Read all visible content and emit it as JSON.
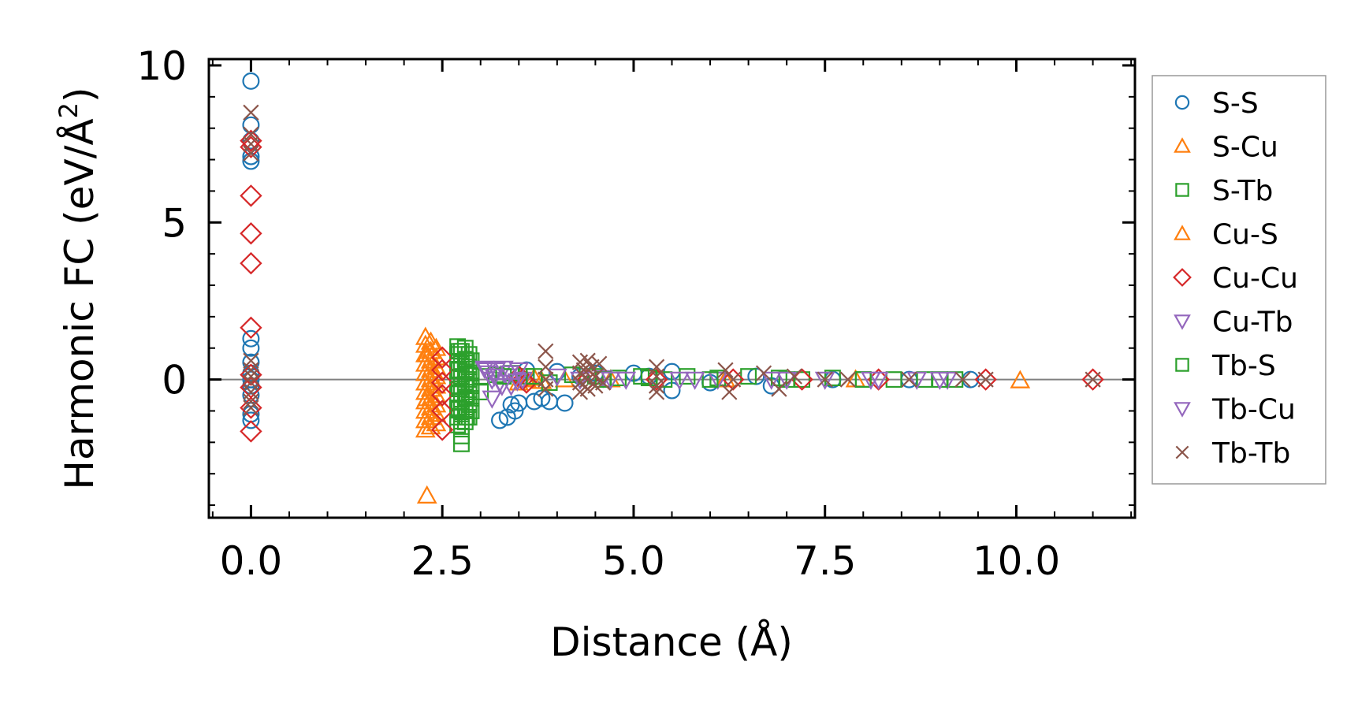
{
  "chart_data": {
    "type": "scatter",
    "xlabel": "Distance (Å)",
    "ylabel_main": "Harmonic FC (eV/Å",
    "ylabel_sup": "2",
    "ylabel_close": ")",
    "xlim": [
      -0.55,
      11.55
    ],
    "ylim": [
      -4.4,
      10.2
    ],
    "xticks": [
      0,
      2.5,
      5,
      7.5,
      10
    ],
    "xtick_labels": [
      "0.0",
      "2.5",
      "5.0",
      "7.5",
      "10.0"
    ],
    "yticks": [
      0,
      5,
      10
    ],
    "ytick_labels": [
      "0",
      "5",
      "10"
    ],
    "xminor_step": 0.5,
    "yminor_step": 1,
    "zero_line_color": "#808080",
    "legend_position": "outside right",
    "series": [
      {
        "name": "S-S",
        "marker": "circle",
        "color": "#1f77b4",
        "points": [
          [
            0,
            9.5
          ],
          [
            0,
            8.1
          ],
          [
            0,
            7.6
          ],
          [
            0,
            7.1
          ],
          [
            0,
            6.95
          ],
          [
            0,
            1.3
          ],
          [
            0,
            1.0
          ],
          [
            0,
            0.55
          ],
          [
            0,
            0.2
          ],
          [
            0,
            0.0
          ],
          [
            0,
            -0.2
          ],
          [
            0,
            -0.5
          ],
          [
            0,
            -1.1
          ],
          [
            0,
            -1.3
          ],
          [
            3.25,
            -1.3
          ],
          [
            3.35,
            -1.2
          ],
          [
            3.4,
            -0.8
          ],
          [
            3.45,
            -1.0
          ],
          [
            3.5,
            -0.75
          ],
          [
            3.6,
            0.3
          ],
          [
            3.7,
            -0.7
          ],
          [
            3.8,
            -0.6
          ],
          [
            3.9,
            -0.7
          ],
          [
            4.0,
            0.25
          ],
          [
            4.1,
            -0.75
          ],
          [
            4.3,
            0.1
          ],
          [
            4.5,
            0.2
          ],
          [
            5.0,
            0.2
          ],
          [
            5.2,
            0.1
          ],
          [
            5.5,
            -0.35
          ],
          [
            5.5,
            0.25
          ],
          [
            6.0,
            -0.1
          ],
          [
            6.6,
            0.1
          ],
          [
            6.8,
            -0.2
          ],
          [
            7.6,
            0.0
          ],
          [
            8.6,
            0.0
          ],
          [
            9.4,
            0.0
          ]
        ]
      },
      {
        "name": "S-Cu",
        "marker": "triangle-up",
        "color": "#ff7f0e",
        "points": [
          [
            2.28,
            1.35
          ],
          [
            2.28,
            1.1
          ],
          [
            2.28,
            0.8
          ],
          [
            2.28,
            0.5
          ],
          [
            2.28,
            0.2
          ],
          [
            2.28,
            -0.1
          ],
          [
            2.28,
            -0.4
          ],
          [
            2.28,
            -0.7
          ],
          [
            2.28,
            -1.0
          ],
          [
            2.28,
            -1.3
          ],
          [
            2.28,
            -1.6
          ],
          [
            2.35,
            1.2
          ],
          [
            2.35,
            0.9
          ],
          [
            2.35,
            0.6
          ],
          [
            2.35,
            0.3
          ],
          [
            2.35,
            0.0
          ],
          [
            2.35,
            -0.3
          ],
          [
            2.35,
            -0.6
          ],
          [
            2.35,
            -0.9
          ],
          [
            2.35,
            -1.2
          ],
          [
            2.35,
            -1.5
          ],
          [
            2.42,
            1.0
          ],
          [
            2.42,
            0.7
          ],
          [
            2.42,
            0.4
          ],
          [
            2.42,
            0.1
          ],
          [
            2.42,
            -0.2
          ],
          [
            2.42,
            -0.5
          ],
          [
            2.42,
            -0.8
          ],
          [
            2.42,
            -1.1
          ],
          [
            2.42,
            -1.4
          ],
          [
            2.3,
            -3.7
          ],
          [
            3.5,
            -0.1
          ],
          [
            3.7,
            0.05
          ],
          [
            3.8,
            -0.05
          ],
          [
            4.1,
            0.0
          ],
          [
            4.7,
            0.0
          ],
          [
            6.2,
            0.0
          ],
          [
            7.9,
            0.0
          ],
          [
            10.05,
            -0.03
          ]
        ]
      },
      {
        "name": "S-Tb",
        "marker": "square",
        "color": "#2ca02c",
        "points": [
          [
            2.7,
            1.05
          ],
          [
            2.7,
            0.8
          ],
          [
            2.7,
            0.55
          ],
          [
            2.7,
            0.3
          ],
          [
            2.7,
            0.05
          ],
          [
            2.7,
            -0.2
          ],
          [
            2.7,
            -0.45
          ],
          [
            2.7,
            -0.7
          ],
          [
            2.7,
            -0.95
          ],
          [
            2.7,
            -1.2
          ],
          [
            2.7,
            -1.45
          ],
          [
            2.75,
            0.9
          ],
          [
            2.75,
            0.5
          ],
          [
            2.75,
            0.1
          ],
          [
            2.75,
            -0.3
          ],
          [
            2.75,
            -0.7
          ],
          [
            2.75,
            -1.1
          ],
          [
            2.75,
            -1.5
          ],
          [
            2.8,
            1.0
          ],
          [
            2.8,
            0.65
          ],
          [
            2.8,
            0.25
          ],
          [
            2.8,
            -0.15
          ],
          [
            2.8,
            -0.55
          ],
          [
            2.8,
            -0.95
          ],
          [
            2.8,
            -1.35
          ],
          [
            2.85,
            0.8
          ],
          [
            2.85,
            0.4
          ],
          [
            2.85,
            0.0
          ],
          [
            2.85,
            -0.4
          ],
          [
            2.85,
            -0.8
          ],
          [
            2.85,
            -1.2
          ],
          [
            2.88,
            0.6
          ],
          [
            2.88,
            0.2
          ],
          [
            2.88,
            -0.2
          ],
          [
            2.88,
            -0.6
          ],
          [
            2.88,
            -1.0
          ],
          [
            2.75,
            -1.8
          ],
          [
            2.75,
            -2.05
          ],
          [
            3.0,
            -0.4
          ],
          [
            3.0,
            0.1
          ],
          [
            3.2,
            0.15
          ],
          [
            3.4,
            0.2
          ],
          [
            3.6,
            0.1
          ],
          [
            3.9,
            -0.1
          ],
          [
            4.2,
            0.15
          ],
          [
            4.5,
            0.1
          ],
          [
            4.8,
            0.05
          ],
          [
            5.1,
            0.1
          ],
          [
            5.4,
            0.0
          ],
          [
            5.7,
            0.1
          ],
          [
            6.1,
            0.05
          ],
          [
            6.5,
            0.1
          ],
          [
            6.9,
            0.05
          ],
          [
            7.2,
            0.0
          ],
          [
            7.6,
            0.05
          ],
          [
            8.0,
            0.0
          ],
          [
            8.4,
            0.0
          ],
          [
            8.8,
            0.0
          ],
          [
            9.2,
            0.0
          ]
        ]
      },
      {
        "name": "Cu-S",
        "marker": "triangle-up",
        "color": "#ff7f0e",
        "points": [
          [
            2.3,
            0.8
          ],
          [
            2.3,
            -0.6
          ],
          [
            2.4,
            0.2
          ],
          [
            3.6,
            0.0
          ]
        ]
      },
      {
        "name": "Cu-Cu",
        "marker": "diamond",
        "color": "#d62728",
        "points": [
          [
            0,
            7.6
          ],
          [
            0,
            7.4
          ],
          [
            0,
            5.85
          ],
          [
            0,
            4.65
          ],
          [
            0,
            3.7
          ],
          [
            0,
            1.65
          ],
          [
            0,
            0.15
          ],
          [
            0,
            -0.25
          ],
          [
            0,
            -0.9
          ],
          [
            0,
            -1.65
          ],
          [
            2.5,
            0.7
          ],
          [
            2.5,
            0.3
          ],
          [
            2.5,
            -0.1
          ],
          [
            2.5,
            -0.5
          ],
          [
            2.5,
            -1.0
          ],
          [
            2.5,
            -1.6
          ],
          [
            3.5,
            0.1
          ],
          [
            3.55,
            0.0
          ],
          [
            3.6,
            -0.1
          ],
          [
            4.4,
            0.0
          ],
          [
            5.3,
            0.0
          ],
          [
            6.3,
            0.0
          ],
          [
            7.2,
            0.0
          ],
          [
            8.2,
            0.0
          ],
          [
            9.6,
            0.0
          ],
          [
            11.0,
            0.0
          ]
        ]
      },
      {
        "name": "Cu-Tb",
        "marker": "triangle-down",
        "color": "#9467bd",
        "points": [
          [
            3.05,
            0.35
          ],
          [
            3.1,
            0.2
          ],
          [
            3.15,
            0.0
          ],
          [
            3.15,
            -0.6
          ],
          [
            3.2,
            0.3
          ],
          [
            3.25,
            -0.1
          ],
          [
            3.3,
            0.35
          ],
          [
            3.35,
            0.1
          ],
          [
            3.4,
            -0.2
          ],
          [
            3.5,
            0.3
          ],
          [
            3.55,
            0.0
          ],
          [
            4.0,
            0.1
          ],
          [
            4.3,
            0.0
          ],
          [
            4.6,
            0.05
          ],
          [
            4.9,
            0.0
          ],
          [
            5.6,
            0.0
          ],
          [
            6.1,
            0.0
          ],
          [
            6.8,
            0.0
          ],
          [
            7.5,
            0.0
          ],
          [
            8.2,
            0.0
          ],
          [
            8.7,
            0.0
          ],
          [
            9.1,
            0.0
          ]
        ]
      },
      {
        "name": "Tb-S",
        "marker": "square",
        "color": "#2ca02c",
        "points": [
          [
            2.72,
            0.9
          ],
          [
            2.72,
            0.3
          ],
          [
            2.72,
            -0.3
          ],
          [
            2.72,
            -0.9
          ],
          [
            2.82,
            0.6
          ],
          [
            2.82,
            0.0
          ],
          [
            2.82,
            -0.6
          ],
          [
            2.82,
            -1.2
          ],
          [
            3.3,
            0.1
          ],
          [
            3.7,
            0.1
          ],
          [
            4.6,
            0.0
          ],
          [
            5.2,
            0.05
          ],
          [
            6.0,
            0.0
          ],
          [
            7.0,
            0.0
          ],
          [
            8.0,
            0.0
          ],
          [
            9.0,
            0.0
          ]
        ]
      },
      {
        "name": "Tb-Cu",
        "marker": "triangle-down",
        "color": "#9467bd",
        "points": [
          [
            3.08,
            0.3
          ],
          [
            3.18,
            0.1
          ],
          [
            3.28,
            -0.2
          ],
          [
            3.38,
            0.2
          ],
          [
            3.48,
            -0.05
          ],
          [
            4.7,
            0.0
          ],
          [
            5.8,
            0.0
          ],
          [
            7.0,
            0.0
          ],
          [
            8.1,
            0.0
          ],
          [
            9.0,
            0.0
          ]
        ]
      },
      {
        "name": "Tb-Tb",
        "marker": "x",
        "color": "#8c564b",
        "points": [
          [
            0,
            8.5
          ],
          [
            0,
            7.8
          ],
          [
            0,
            7.5
          ],
          [
            0,
            7.2
          ],
          [
            0,
            0.6
          ],
          [
            0,
            0.3
          ],
          [
            0,
            0.1
          ],
          [
            0,
            -0.1
          ],
          [
            0,
            -0.4
          ],
          [
            0,
            -0.7
          ],
          [
            0,
            -0.9
          ],
          [
            3.85,
            0.9
          ],
          [
            3.85,
            0.4
          ],
          [
            3.85,
            0.0
          ],
          [
            3.85,
            -0.3
          ],
          [
            4.3,
            0.55
          ],
          [
            4.3,
            0.2
          ],
          [
            4.3,
            -0.1
          ],
          [
            4.3,
            -0.4
          ],
          [
            4.35,
            0.3
          ],
          [
            4.4,
            0.6
          ],
          [
            4.4,
            0.0
          ],
          [
            4.4,
            -0.3
          ],
          [
            4.45,
            0.4
          ],
          [
            4.5,
            0.1
          ],
          [
            4.5,
            -0.2
          ],
          [
            4.55,
            0.5
          ],
          [
            4.6,
            -0.1
          ],
          [
            5.3,
            0.4
          ],
          [
            5.3,
            0.1
          ],
          [
            5.3,
            -0.2
          ],
          [
            5.3,
            -0.4
          ],
          [
            6.2,
            0.3
          ],
          [
            6.25,
            -0.4
          ],
          [
            6.3,
            0.0
          ],
          [
            6.7,
            0.2
          ],
          [
            6.9,
            -0.3
          ],
          [
            7.1,
            0.1
          ],
          [
            7.5,
            0.0
          ],
          [
            7.8,
            0.0
          ],
          [
            8.6,
            0.0
          ],
          [
            9.3,
            0.0
          ],
          [
            9.6,
            0.0
          ],
          [
            11.0,
            0.0
          ]
        ]
      }
    ]
  }
}
